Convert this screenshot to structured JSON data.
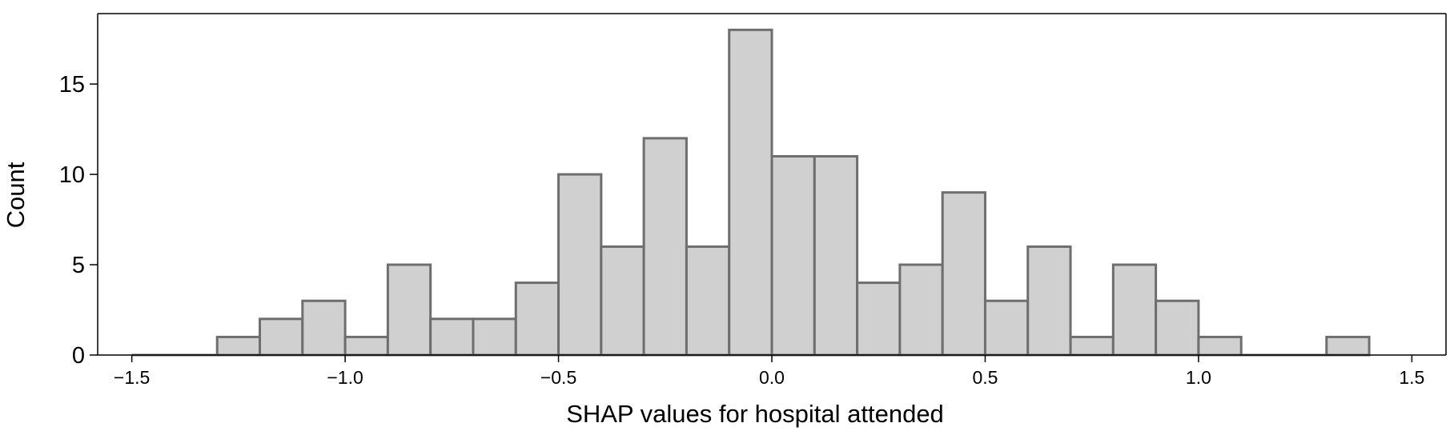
{
  "chart_data": {
    "type": "bar",
    "title": "",
    "xlabel": "SHAP values for hospital attended",
    "ylabel": "Count",
    "xlim": [
      -1.58,
      1.58
    ],
    "ylim": [
      0,
      18.9
    ],
    "bin_width": 0.1,
    "bin_starts": [
      -1.5,
      -1.4,
      -1.3,
      -1.2,
      -1.1,
      -1.0,
      -0.9,
      -0.8,
      -0.7,
      -0.6,
      -0.5,
      -0.4,
      -0.3,
      -0.2,
      -0.1,
      0.0,
      0.1,
      0.2,
      0.3,
      0.4,
      0.5,
      0.6,
      0.7,
      0.8,
      0.9,
      1.0,
      1.1,
      1.2,
      1.3
    ],
    "values": [
      0,
      0,
      1,
      2,
      3,
      1,
      5,
      2,
      2,
      4,
      10,
      6,
      12,
      6,
      18,
      11,
      11,
      4,
      5,
      9,
      3,
      6,
      1,
      5,
      3,
      1,
      0,
      0,
      1
    ],
    "x_ticks": [
      -1.5,
      -1.0,
      -0.5,
      0.0,
      0.5,
      1.0,
      1.5
    ],
    "x_tick_labels": [
      "−1.5",
      "−1.0",
      "−0.5",
      "0.0",
      "0.5",
      "1.0",
      "1.5"
    ],
    "y_ticks": [
      0,
      5,
      10,
      15
    ],
    "y_tick_labels": [
      "0",
      "5",
      "10",
      "15"
    ],
    "grid": false,
    "colors": {
      "bar_fill": "#d0d0d0",
      "bar_edge": "#6e6e6e",
      "axis": "#000000",
      "background": "#ffffff"
    }
  }
}
